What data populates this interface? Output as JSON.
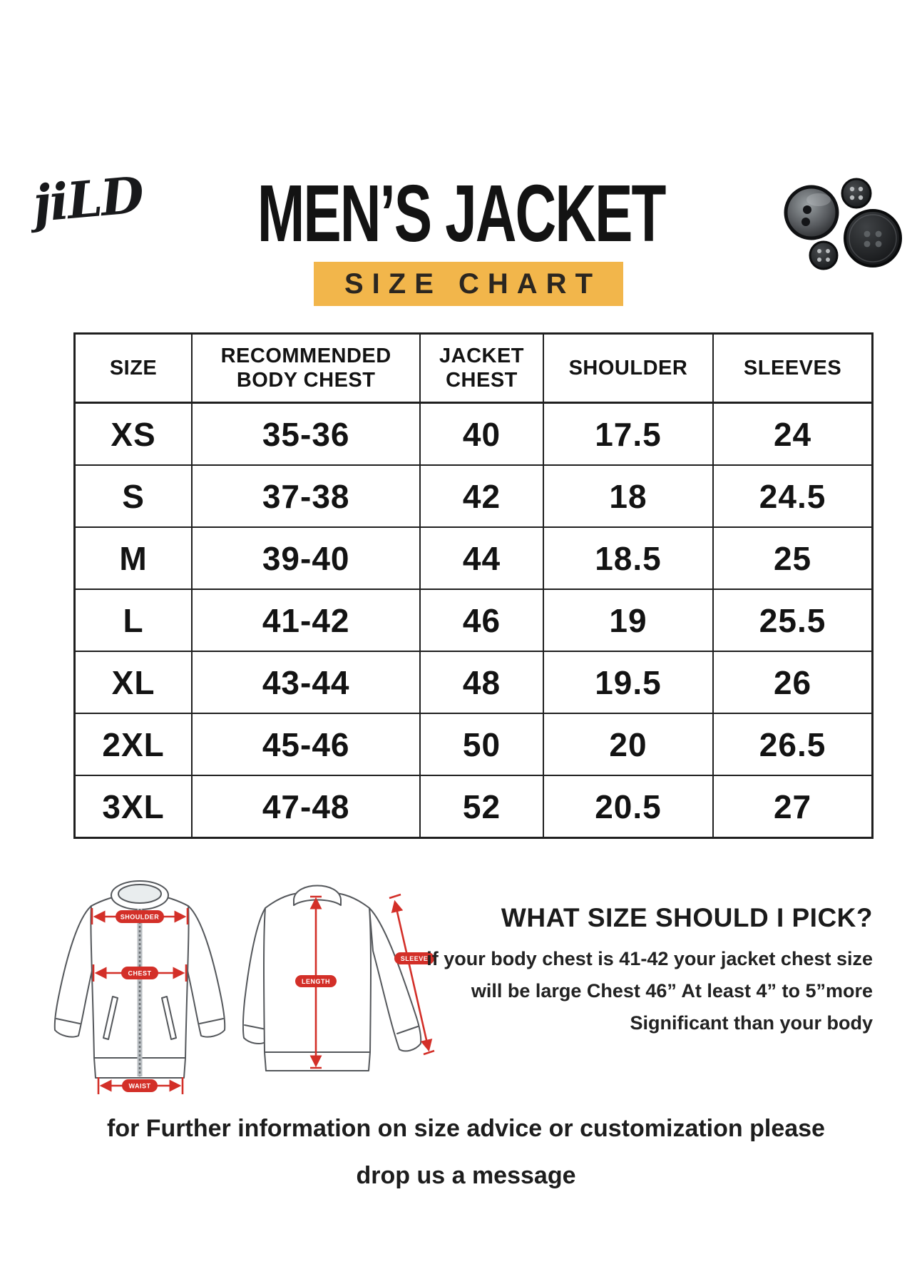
{
  "brand": {
    "logo_text": "jiLD"
  },
  "header": {
    "title": "MEN’S JACKET",
    "subtitle": "SIZE CHART"
  },
  "colors": {
    "accent_yellow": "#f2b64b",
    "measure_red": "#d32f28",
    "ink": "#1c1c1c"
  },
  "chart_data": {
    "type": "table",
    "title": "MEN’S JACKET SIZE CHART",
    "columns": [
      "SIZE",
      "RECOMMENDED BODY CHEST",
      "JACKET CHEST",
      "SHOULDER",
      "SLEEVES"
    ],
    "rows": [
      [
        "XS",
        "35-36",
        "40",
        "17.5",
        "24"
      ],
      [
        "S",
        "37-38",
        "42",
        "18",
        "24.5"
      ],
      [
        "M",
        "39-40",
        "44",
        "18.5",
        "25"
      ],
      [
        "L",
        "41-42",
        "46",
        "19",
        "25.5"
      ],
      [
        "XL",
        "43-44",
        "48",
        "19.5",
        "26"
      ],
      [
        "2XL",
        "45-46",
        "50",
        "20",
        "26.5"
      ],
      [
        "3XL",
        "47-48",
        "52",
        "20.5",
        "27"
      ]
    ]
  },
  "diagram": {
    "front_labels": {
      "shoulder": "SHOULDER",
      "chest": "CHEST",
      "waist": "WAIST"
    },
    "back_labels": {
      "length": "LENGTH",
      "sleeve": "SLEEVE"
    }
  },
  "advice": {
    "heading": "WHAT SIZE SHOULD I PICK?",
    "lines": [
      "if your body chest is 41-42 your jacket chest size",
      "will be large Chest 46” At least 4” to 5”more",
      "Significant than your body"
    ]
  },
  "footer": {
    "lines": [
      "for Further information on size advice or customization please",
      "drop us a message"
    ]
  }
}
